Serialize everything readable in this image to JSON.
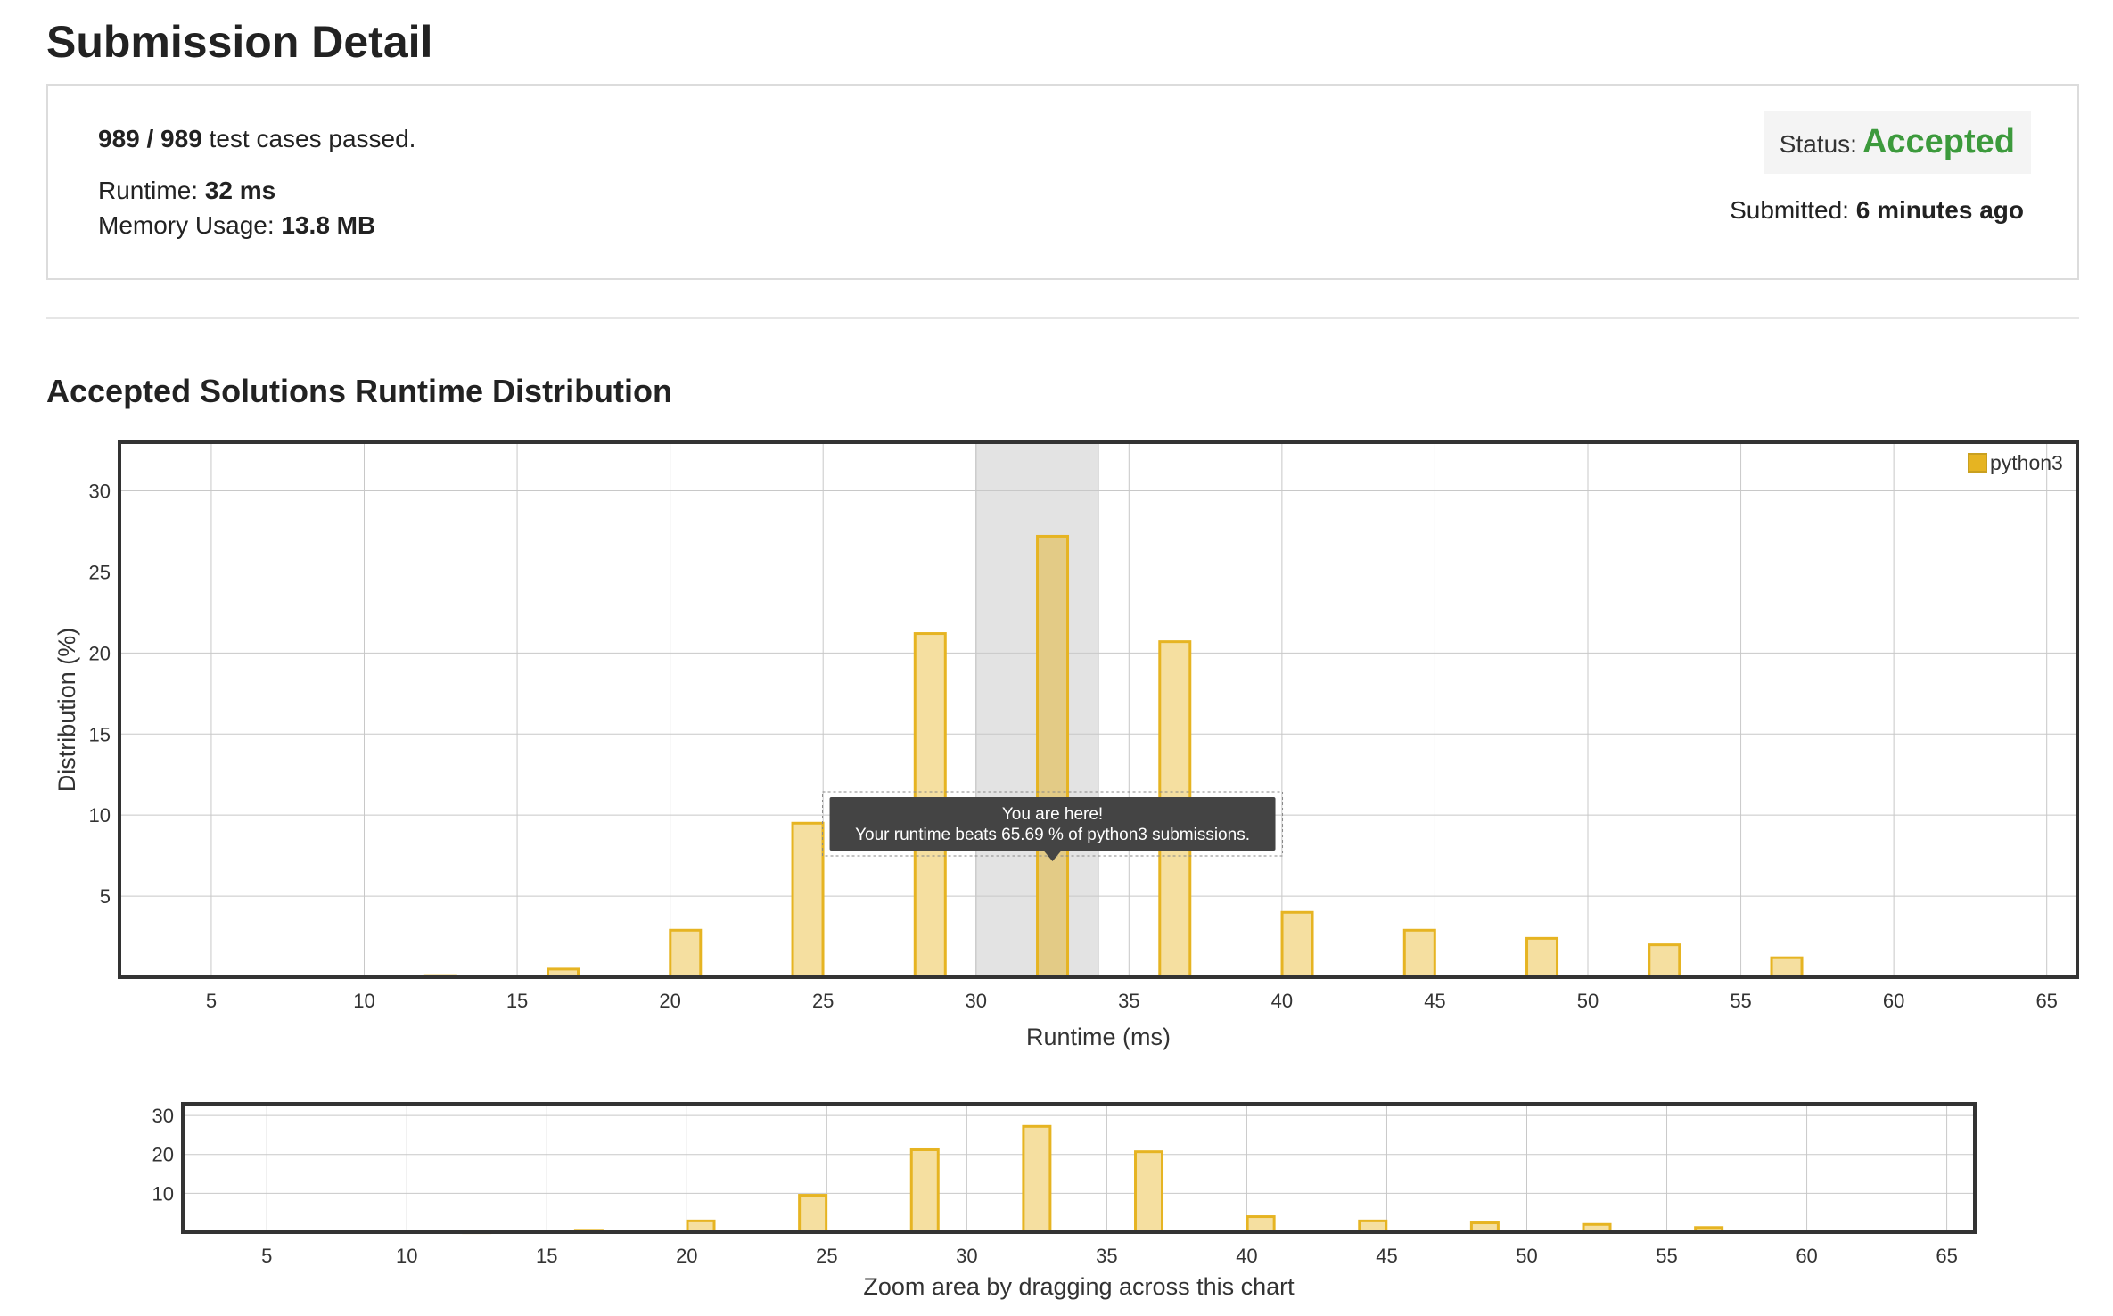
{
  "page": {
    "title": "Submission Detail",
    "tests_count": "989 / 989",
    "tests_suffix": " test cases passed.",
    "runtime_label": "Runtime: ",
    "runtime_value": "32 ms",
    "memory_label": "Memory Usage: ",
    "memory_value": "13.8 MB",
    "status_label": "Status:",
    "status_value": "Accepted",
    "submitted_label": "Submitted: ",
    "submitted_value": "6 minutes ago",
    "section_title": "Accepted Solutions Runtime Distribution"
  },
  "colors": {
    "bar_fill": "#f5dfa0",
    "bar_stroke": "#e6b422",
    "highlight_bar_fill": "#e3cb86",
    "highlight_band": "#e3e3e3",
    "status_green": "#3c9a3c",
    "tooltip_bg": "#444444"
  },
  "chart_data": [
    {
      "type": "bar",
      "x": [
        12.5,
        16.5,
        20.5,
        24.5,
        28.5,
        32.5,
        36.5,
        40.5,
        44.5,
        48.5,
        52.5,
        56.5
      ],
      "series": [
        {
          "name": "python3",
          "values": [
            0.1,
            0.5,
            2.9,
            9.5,
            21.2,
            27.2,
            20.7,
            4.0,
            2.9,
            2.4,
            2.0,
            1.2
          ]
        }
      ],
      "xlabel": "Runtime (ms)",
      "ylabel": "Distribution (%)",
      "xlim": [
        2,
        66
      ],
      "ylim": [
        0,
        33
      ],
      "xticks": [
        "5",
        "10",
        "15",
        "20",
        "25",
        "30",
        "35",
        "40",
        "45",
        "50",
        "55",
        "60",
        "65"
      ],
      "yticks": [
        "5",
        "10",
        "15",
        "20",
        "25",
        "30"
      ],
      "highlight_range": [
        30,
        34
      ],
      "highlight_x": 32.5,
      "legend": "top-right",
      "grid": true,
      "tooltip": {
        "line1": "You are here!",
        "line2": "Your runtime beats 65.69 % of python3 submissions."
      }
    },
    {
      "type": "bar",
      "x": [
        12.5,
        16.5,
        20.5,
        24.5,
        28.5,
        32.5,
        36.5,
        40.5,
        44.5,
        48.5,
        52.5,
        56.5
      ],
      "series": [
        {
          "values": [
            0.1,
            0.5,
            2.9,
            9.5,
            21.2,
            27.2,
            20.7,
            4.0,
            2.9,
            2.4,
            2.0,
            1.2
          ]
        }
      ],
      "xlabel": "Zoom area by dragging across this chart",
      "xlim": [
        2,
        66
      ],
      "ylim": [
        0,
        33
      ],
      "xticks": [
        "5",
        "10",
        "15",
        "20",
        "25",
        "30",
        "35",
        "40",
        "45",
        "50",
        "55",
        "60",
        "65"
      ],
      "yticks": [
        "10",
        "20",
        "30"
      ],
      "grid": true
    }
  ]
}
